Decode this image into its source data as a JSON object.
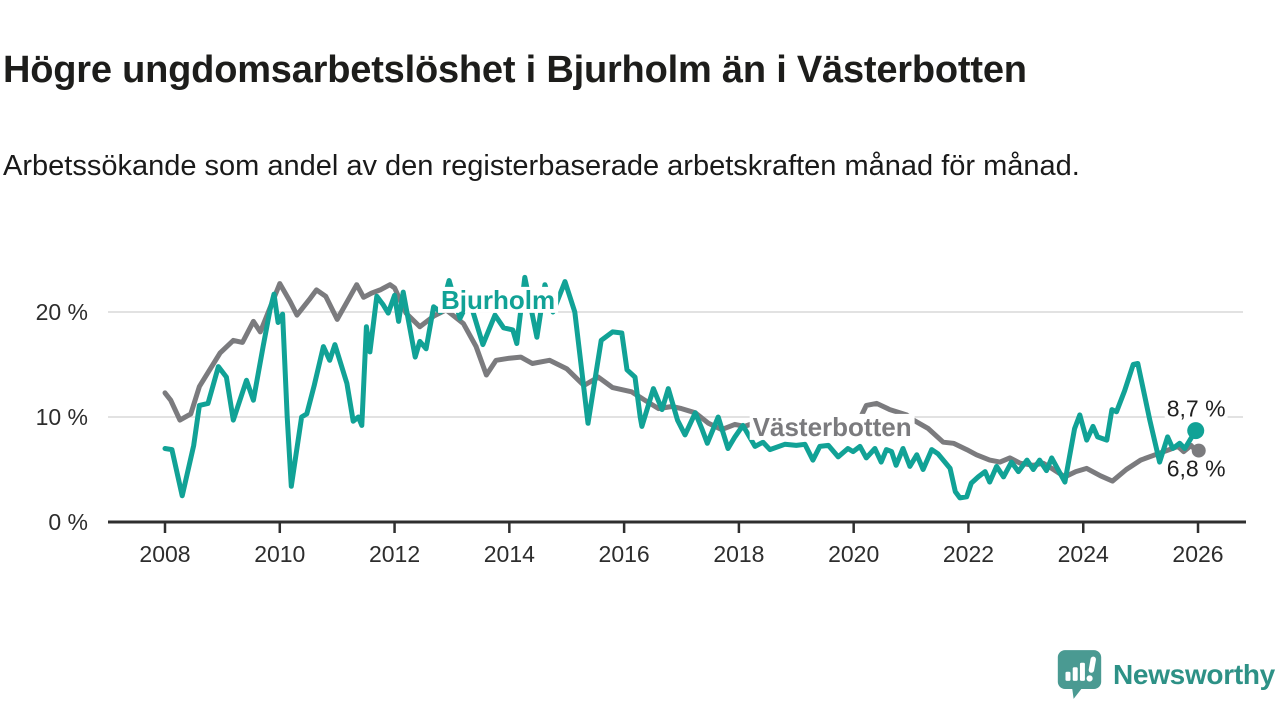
{
  "header": {
    "title": "Högre ungdomsarbetslöshet i Bjurholm än i Västerbotten",
    "subtitle": "Arbetssökande som andel av den registerbaserade arbetskraften månad för månad."
  },
  "chart_data": {
    "type": "line",
    "unit": "%",
    "grid": true,
    "grid_color": "#d9d9d9",
    "axis_color": "#2f2f2f",
    "xlim": [
      2007.85,
      2026.4
    ],
    "ylim": [
      0,
      24
    ],
    "x_axis": {
      "ticks": [
        2008,
        2010,
        2012,
        2014,
        2016,
        2018,
        2020,
        2022,
        2024,
        2026
      ]
    },
    "y_axis": {
      "ticks": [
        {
          "value": 0,
          "label": "0 %"
        },
        {
          "value": 10,
          "label": "10 %"
        },
        {
          "value": 20,
          "label": "20 %"
        }
      ]
    },
    "series": [
      {
        "name": "Västerbotten",
        "color": "#7b7b7e",
        "end_label": "6,8 %",
        "end_dot": true,
        "name_label": {
          "year": 2018.24,
          "value": 8.2
        },
        "points": [
          [
            2008.0,
            12.3
          ],
          [
            2008.1,
            11.6
          ],
          [
            2008.26,
            9.7
          ],
          [
            2008.45,
            10.3
          ],
          [
            2008.6,
            12.9
          ],
          [
            2008.96,
            16.1
          ],
          [
            2009.19,
            17.3
          ],
          [
            2009.35,
            17.1
          ],
          [
            2009.54,
            19.1
          ],
          [
            2009.66,
            18.1
          ],
          [
            2010.0,
            22.7
          ],
          [
            2010.18,
            21.0
          ],
          [
            2010.3,
            19.7
          ],
          [
            2010.53,
            21.3
          ],
          [
            2010.64,
            22.1
          ],
          [
            2010.8,
            21.5
          ],
          [
            2011.0,
            19.3
          ],
          [
            2011.34,
            22.6
          ],
          [
            2011.46,
            21.4
          ],
          [
            2011.6,
            21.8
          ],
          [
            2011.75,
            22.1
          ],
          [
            2011.92,
            22.6
          ],
          [
            2012.0,
            22.3
          ],
          [
            2012.2,
            19.9
          ],
          [
            2012.44,
            18.6
          ],
          [
            2012.68,
            19.6
          ],
          [
            2012.9,
            20.2
          ],
          [
            2013.2,
            18.9
          ],
          [
            2013.42,
            16.7
          ],
          [
            2013.6,
            14.0
          ],
          [
            2013.77,
            15.4
          ],
          [
            2014.0,
            15.6
          ],
          [
            2014.2,
            15.7
          ],
          [
            2014.4,
            15.1
          ],
          [
            2014.7,
            15.4
          ],
          [
            2015.0,
            14.6
          ],
          [
            2015.3,
            13.0
          ],
          [
            2015.55,
            13.8
          ],
          [
            2015.8,
            12.8
          ],
          [
            2016.13,
            12.4
          ],
          [
            2016.36,
            11.6
          ],
          [
            2016.6,
            10.8
          ],
          [
            2016.83,
            11.0
          ],
          [
            2017.0,
            10.8
          ],
          [
            2017.24,
            10.4
          ],
          [
            2017.47,
            9.4
          ],
          [
            2017.7,
            8.8
          ],
          [
            2017.93,
            9.3
          ],
          [
            2018.1,
            9.1
          ],
          [
            2018.3,
            9.5
          ],
          [
            2018.6,
            8.9
          ],
          [
            2018.9,
            8.7
          ],
          [
            2019.1,
            8.8
          ],
          [
            2019.4,
            8.4
          ],
          [
            2019.76,
            8.4
          ],
          [
            2020.0,
            8.6
          ],
          [
            2020.22,
            11.1
          ],
          [
            2020.4,
            11.3
          ],
          [
            2020.63,
            10.7
          ],
          [
            2020.92,
            10.2
          ],
          [
            2021.04,
            9.7
          ],
          [
            2021.3,
            8.9
          ],
          [
            2021.56,
            7.6
          ],
          [
            2021.74,
            7.5
          ],
          [
            2021.97,
            6.9
          ],
          [
            2022.14,
            6.4
          ],
          [
            2022.37,
            5.9
          ],
          [
            2022.55,
            5.7
          ],
          [
            2022.72,
            6.1
          ],
          [
            2022.9,
            5.6
          ],
          [
            2023.13,
            5.4
          ],
          [
            2023.3,
            5.6
          ],
          [
            2023.45,
            5.1
          ],
          [
            2023.68,
            4.3
          ],
          [
            2023.87,
            4.8
          ],
          [
            2024.06,
            5.1
          ],
          [
            2024.3,
            4.4
          ],
          [
            2024.51,
            3.9
          ],
          [
            2024.75,
            5.0
          ],
          [
            2025.0,
            5.9
          ],
          [
            2025.3,
            6.5
          ],
          [
            2025.5,
            6.9
          ],
          [
            2025.65,
            7.2
          ],
          [
            2025.75,
            6.7
          ],
          [
            2025.88,
            7.3
          ],
          [
            2025.96,
            6.8
          ]
        ]
      },
      {
        "name": "Bjurholm",
        "color": "#11a296",
        "end_label": "8,7 %",
        "end_dot": true,
        "name_label": {
          "year": 2012.81,
          "value": 20.3
        },
        "points": [
          [
            2008.0,
            7.0
          ],
          [
            2008.12,
            6.9
          ],
          [
            2008.3,
            2.5
          ],
          [
            2008.5,
            7.3
          ],
          [
            2008.6,
            11.1
          ],
          [
            2008.75,
            11.3
          ],
          [
            2008.93,
            14.8
          ],
          [
            2009.07,
            13.8
          ],
          [
            2009.19,
            9.7
          ],
          [
            2009.42,
            13.5
          ],
          [
            2009.54,
            11.6
          ],
          [
            2009.71,
            16.7
          ],
          [
            2009.83,
            20.2
          ],
          [
            2009.9,
            21.7
          ],
          [
            2009.97,
            19.0
          ],
          [
            2010.05,
            19.8
          ],
          [
            2010.13,
            10.0
          ],
          [
            2010.2,
            3.4
          ],
          [
            2010.38,
            10.0
          ],
          [
            2010.47,
            10.3
          ],
          [
            2010.6,
            13.0
          ],
          [
            2010.76,
            16.7
          ],
          [
            2010.87,
            15.4
          ],
          [
            2010.96,
            16.9
          ],
          [
            2011.17,
            13.2
          ],
          [
            2011.28,
            9.6
          ],
          [
            2011.37,
            10.0
          ],
          [
            2011.43,
            9.2
          ],
          [
            2011.51,
            18.6
          ],
          [
            2011.57,
            16.2
          ],
          [
            2011.69,
            21.5
          ],
          [
            2011.8,
            20.7
          ],
          [
            2011.89,
            19.9
          ],
          [
            2012.0,
            21.6
          ],
          [
            2012.07,
            19.1
          ],
          [
            2012.15,
            21.9
          ],
          [
            2012.36,
            15.7
          ],
          [
            2012.44,
            17.2
          ],
          [
            2012.55,
            16.5
          ],
          [
            2012.68,
            20.5
          ],
          [
            2012.8,
            20.0
          ],
          [
            2012.95,
            23.0
          ],
          [
            2013.14,
            19.4
          ],
          [
            2013.3,
            21.2
          ],
          [
            2013.54,
            16.9
          ],
          [
            2013.75,
            19.7
          ],
          [
            2013.9,
            18.5
          ],
          [
            2014.06,
            18.3
          ],
          [
            2014.13,
            17.0
          ],
          [
            2014.27,
            23.3
          ],
          [
            2014.48,
            17.6
          ],
          [
            2014.62,
            22.6
          ],
          [
            2014.76,
            20.0
          ],
          [
            2014.97,
            22.9
          ],
          [
            2015.14,
            20.0
          ],
          [
            2015.37,
            9.4
          ],
          [
            2015.6,
            17.3
          ],
          [
            2015.8,
            18.1
          ],
          [
            2015.96,
            18.0
          ],
          [
            2016.05,
            14.5
          ],
          [
            2016.19,
            13.8
          ],
          [
            2016.28,
            10.0
          ],
          [
            2016.31,
            9.1
          ],
          [
            2016.51,
            12.7
          ],
          [
            2016.66,
            10.7
          ],
          [
            2016.77,
            12.7
          ],
          [
            2016.93,
            9.7
          ],
          [
            2017.06,
            8.3
          ],
          [
            2017.24,
            10.4
          ],
          [
            2017.36,
            8.8
          ],
          [
            2017.45,
            7.5
          ],
          [
            2017.64,
            10.0
          ],
          [
            2017.81,
            7.0
          ],
          [
            2017.93,
            8.1
          ],
          [
            2018.07,
            9.2
          ],
          [
            2018.28,
            7.2
          ],
          [
            2018.42,
            7.6
          ],
          [
            2018.54,
            6.9
          ],
          [
            2018.8,
            7.4
          ],
          [
            2019.0,
            7.3
          ],
          [
            2019.15,
            7.4
          ],
          [
            2019.29,
            5.9
          ],
          [
            2019.41,
            7.2
          ],
          [
            2019.56,
            7.3
          ],
          [
            2019.73,
            6.2
          ],
          [
            2019.9,
            7.0
          ],
          [
            2019.99,
            6.7
          ],
          [
            2020.11,
            7.2
          ],
          [
            2020.22,
            6.1
          ],
          [
            2020.37,
            7.0
          ],
          [
            2020.48,
            5.7
          ],
          [
            2020.57,
            6.9
          ],
          [
            2020.66,
            6.7
          ],
          [
            2020.74,
            5.4
          ],
          [
            2020.86,
            7.0
          ],
          [
            2020.98,
            5.3
          ],
          [
            2021.1,
            6.4
          ],
          [
            2021.21,
            5.0
          ],
          [
            2021.36,
            6.9
          ],
          [
            2021.47,
            6.5
          ],
          [
            2021.68,
            5.1
          ],
          [
            2021.77,
            2.9
          ],
          [
            2021.85,
            2.3
          ],
          [
            2021.97,
            2.4
          ],
          [
            2022.05,
            3.7
          ],
          [
            2022.17,
            4.3
          ],
          [
            2022.29,
            4.8
          ],
          [
            2022.37,
            3.8
          ],
          [
            2022.49,
            5.3
          ],
          [
            2022.61,
            4.3
          ],
          [
            2022.75,
            5.7
          ],
          [
            2022.87,
            4.8
          ],
          [
            2023.02,
            5.9
          ],
          [
            2023.13,
            5.0
          ],
          [
            2023.24,
            5.9
          ],
          [
            2023.36,
            4.9
          ],
          [
            2023.45,
            6.1
          ],
          [
            2023.68,
            3.8
          ],
          [
            2023.85,
            8.9
          ],
          [
            2023.94,
            10.2
          ],
          [
            2024.06,
            7.8
          ],
          [
            2024.17,
            9.1
          ],
          [
            2024.25,
            8.1
          ],
          [
            2024.41,
            7.8
          ],
          [
            2024.5,
            10.7
          ],
          [
            2024.58,
            10.5
          ],
          [
            2024.72,
            12.5
          ],
          [
            2024.87,
            15.0
          ],
          [
            2024.95,
            15.1
          ],
          [
            2025.16,
            9.7
          ],
          [
            2025.33,
            5.7
          ],
          [
            2025.47,
            8.1
          ],
          [
            2025.56,
            7.0
          ],
          [
            2025.68,
            7.5
          ],
          [
            2025.77,
            7.0
          ],
          [
            2025.96,
            8.7
          ]
        ]
      }
    ]
  },
  "footer": {
    "brand": "Newsworthy",
    "logo_icon": "newsworthy-speech-bubble-chart-icon",
    "brand_color": "#2d9186",
    "icon_color": "#4a9a92"
  }
}
